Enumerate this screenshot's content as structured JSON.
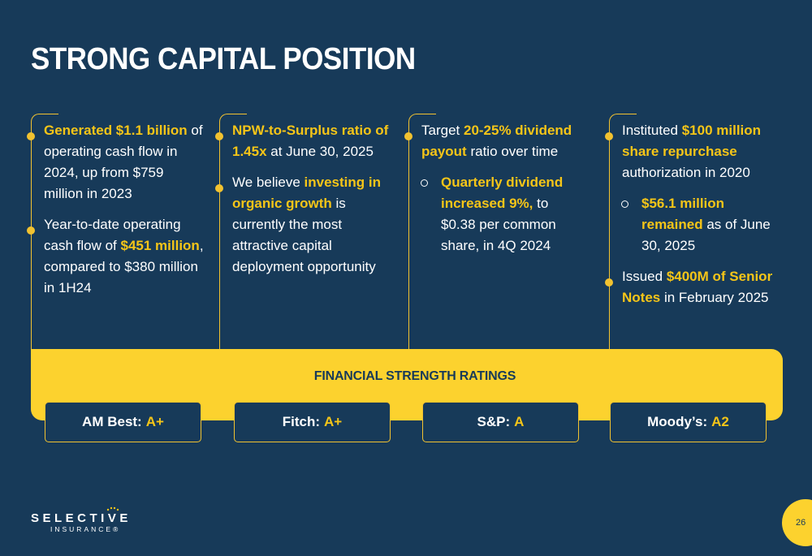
{
  "title": "STRONG CAPITAL POSITION",
  "columns": [
    {
      "bullets": [
        {
          "parts": [
            {
              "t": "Generated $1.1 billion",
              "h": true
            },
            {
              "t": " of operating cash flow in 2024, up from $759 million in 2023",
              "h": false
            }
          ]
        },
        {
          "parts": [
            {
              "t": "Year-to-date operating cash flow of ",
              "h": false
            },
            {
              "t": "$451 million",
              "h": true
            },
            {
              "t": ", compared to $380 million in 1H24",
              "h": false
            }
          ]
        }
      ]
    },
    {
      "bullets": [
        {
          "parts": [
            {
              "t": "NPW-to-Surplus ratio of 1.45x",
              "h": true
            },
            {
              "t": " at June 30, 2025",
              "h": false
            }
          ]
        },
        {
          "parts": [
            {
              "t": "We believe ",
              "h": false
            },
            {
              "t": "investing in organic growth",
              "h": true
            },
            {
              "t": " is currently the most attractive capital deployment opportunity",
              "h": false
            }
          ]
        }
      ]
    },
    {
      "bullets": [
        {
          "parts": [
            {
              "t": "Target ",
              "h": false
            },
            {
              "t": "20-25% dividend payout",
              "h": true
            },
            {
              "t": " ratio over time",
              "h": false
            }
          ]
        },
        {
          "sub": true,
          "parts": [
            {
              "t": "Quarterly dividend increased 9%,",
              "h": true
            },
            {
              "t": " to $0.38 per common share, in 4Q 2024",
              "h": false
            }
          ]
        }
      ]
    },
    {
      "bullets": [
        {
          "parts": [
            {
              "t": "Instituted ",
              "h": false
            },
            {
              "t": "$100 million share repurchase",
              "h": true
            },
            {
              "t": " authorization in 2020",
              "h": false
            }
          ]
        },
        {
          "sub": true,
          "parts": [
            {
              "t": "$56.1 million remained",
              "h": true
            },
            {
              "t": " as of June 30, 2025",
              "h": false
            }
          ]
        },
        {
          "parts": [
            {
              "t": "Issued ",
              "h": false
            },
            {
              "t": "$400M of Senior Notes",
              "h": true
            },
            {
              "t": " in February 2025",
              "h": false
            }
          ]
        }
      ]
    }
  ],
  "ratings": {
    "title": "FINANCIAL STRENGTH RATINGS",
    "items": [
      {
        "agency": "AM Best:",
        "value": "A+"
      },
      {
        "agency": "Fitch:",
        "value": "A+"
      },
      {
        "agency": "S&P:",
        "value": "A"
      },
      {
        "agency": "Moody’s:",
        "value": "A2"
      }
    ]
  },
  "logo": {
    "main": "SELECTIVE",
    "sub": "INSURANCE®"
  },
  "page_number": "26",
  "colors": {
    "background": "#173a59",
    "accent": "#f5c518",
    "band": "#fcd22e"
  }
}
